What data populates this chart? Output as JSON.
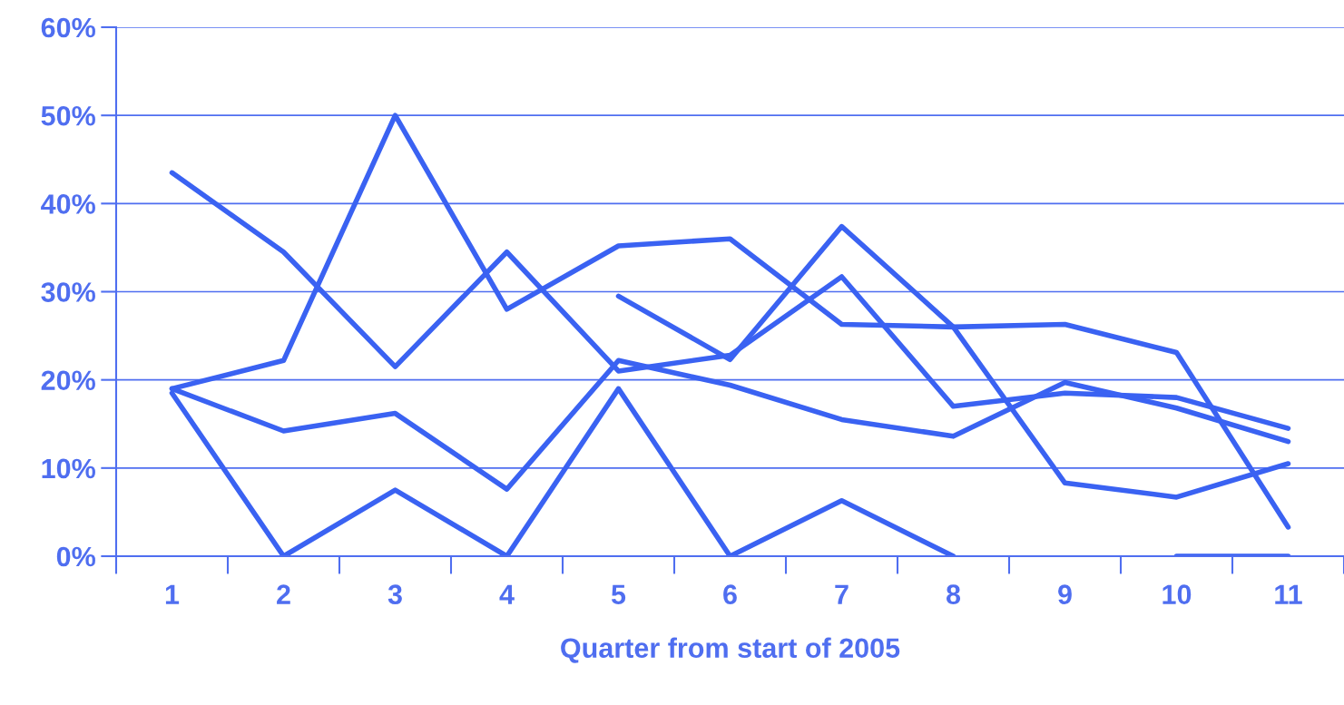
{
  "chart_data": {
    "type": "line",
    "xlabel": "Quarter from start of 2005",
    "categories": [
      "1",
      "2",
      "3",
      "4",
      "5",
      "6",
      "7",
      "8",
      "9",
      "10",
      "11"
    ],
    "series": [
      {
        "color": "#3a62f2",
        "values": [
          43.5,
          34.5,
          21.5,
          34.5,
          21,
          22.8,
          31.7,
          17,
          18.5,
          18,
          14.5
        ]
      },
      {
        "color": "#3a62f2",
        "values": [
          19,
          22.2,
          50,
          28,
          35.2,
          36,
          26.3,
          26,
          26.3,
          23.1,
          3.3
        ]
      },
      {
        "color": "#3a62f2",
        "values": [
          null,
          null,
          null,
          null,
          29.5,
          22.3,
          37.4,
          26,
          8.3,
          6.7,
          10.5
        ]
      },
      {
        "color": "#3a62f2",
        "values": [
          19,
          14.2,
          16.2,
          7.6,
          22.2,
          19.4,
          15.5,
          13.6,
          19.7,
          16.8,
          13
        ]
      },
      {
        "color": "#3a62f2",
        "values": [
          18.5,
          0,
          7.5,
          0,
          19,
          0,
          6.3,
          0,
          null,
          0,
          0
        ]
      }
    ],
    "ylim": [
      0,
      60
    ],
    "yticks": [
      {
        "value": 0,
        "label": "0%"
      },
      {
        "value": 10,
        "label": "10%"
      },
      {
        "value": 20,
        "label": "20%"
      },
      {
        "value": 30,
        "label": "30%"
      },
      {
        "value": 40,
        "label": "40%"
      },
      {
        "value": 50,
        "label": "50%"
      },
      {
        "value": 60,
        "label": "60%"
      }
    ],
    "grid": "y",
    "marker": "none",
    "line_style": "solid"
  }
}
